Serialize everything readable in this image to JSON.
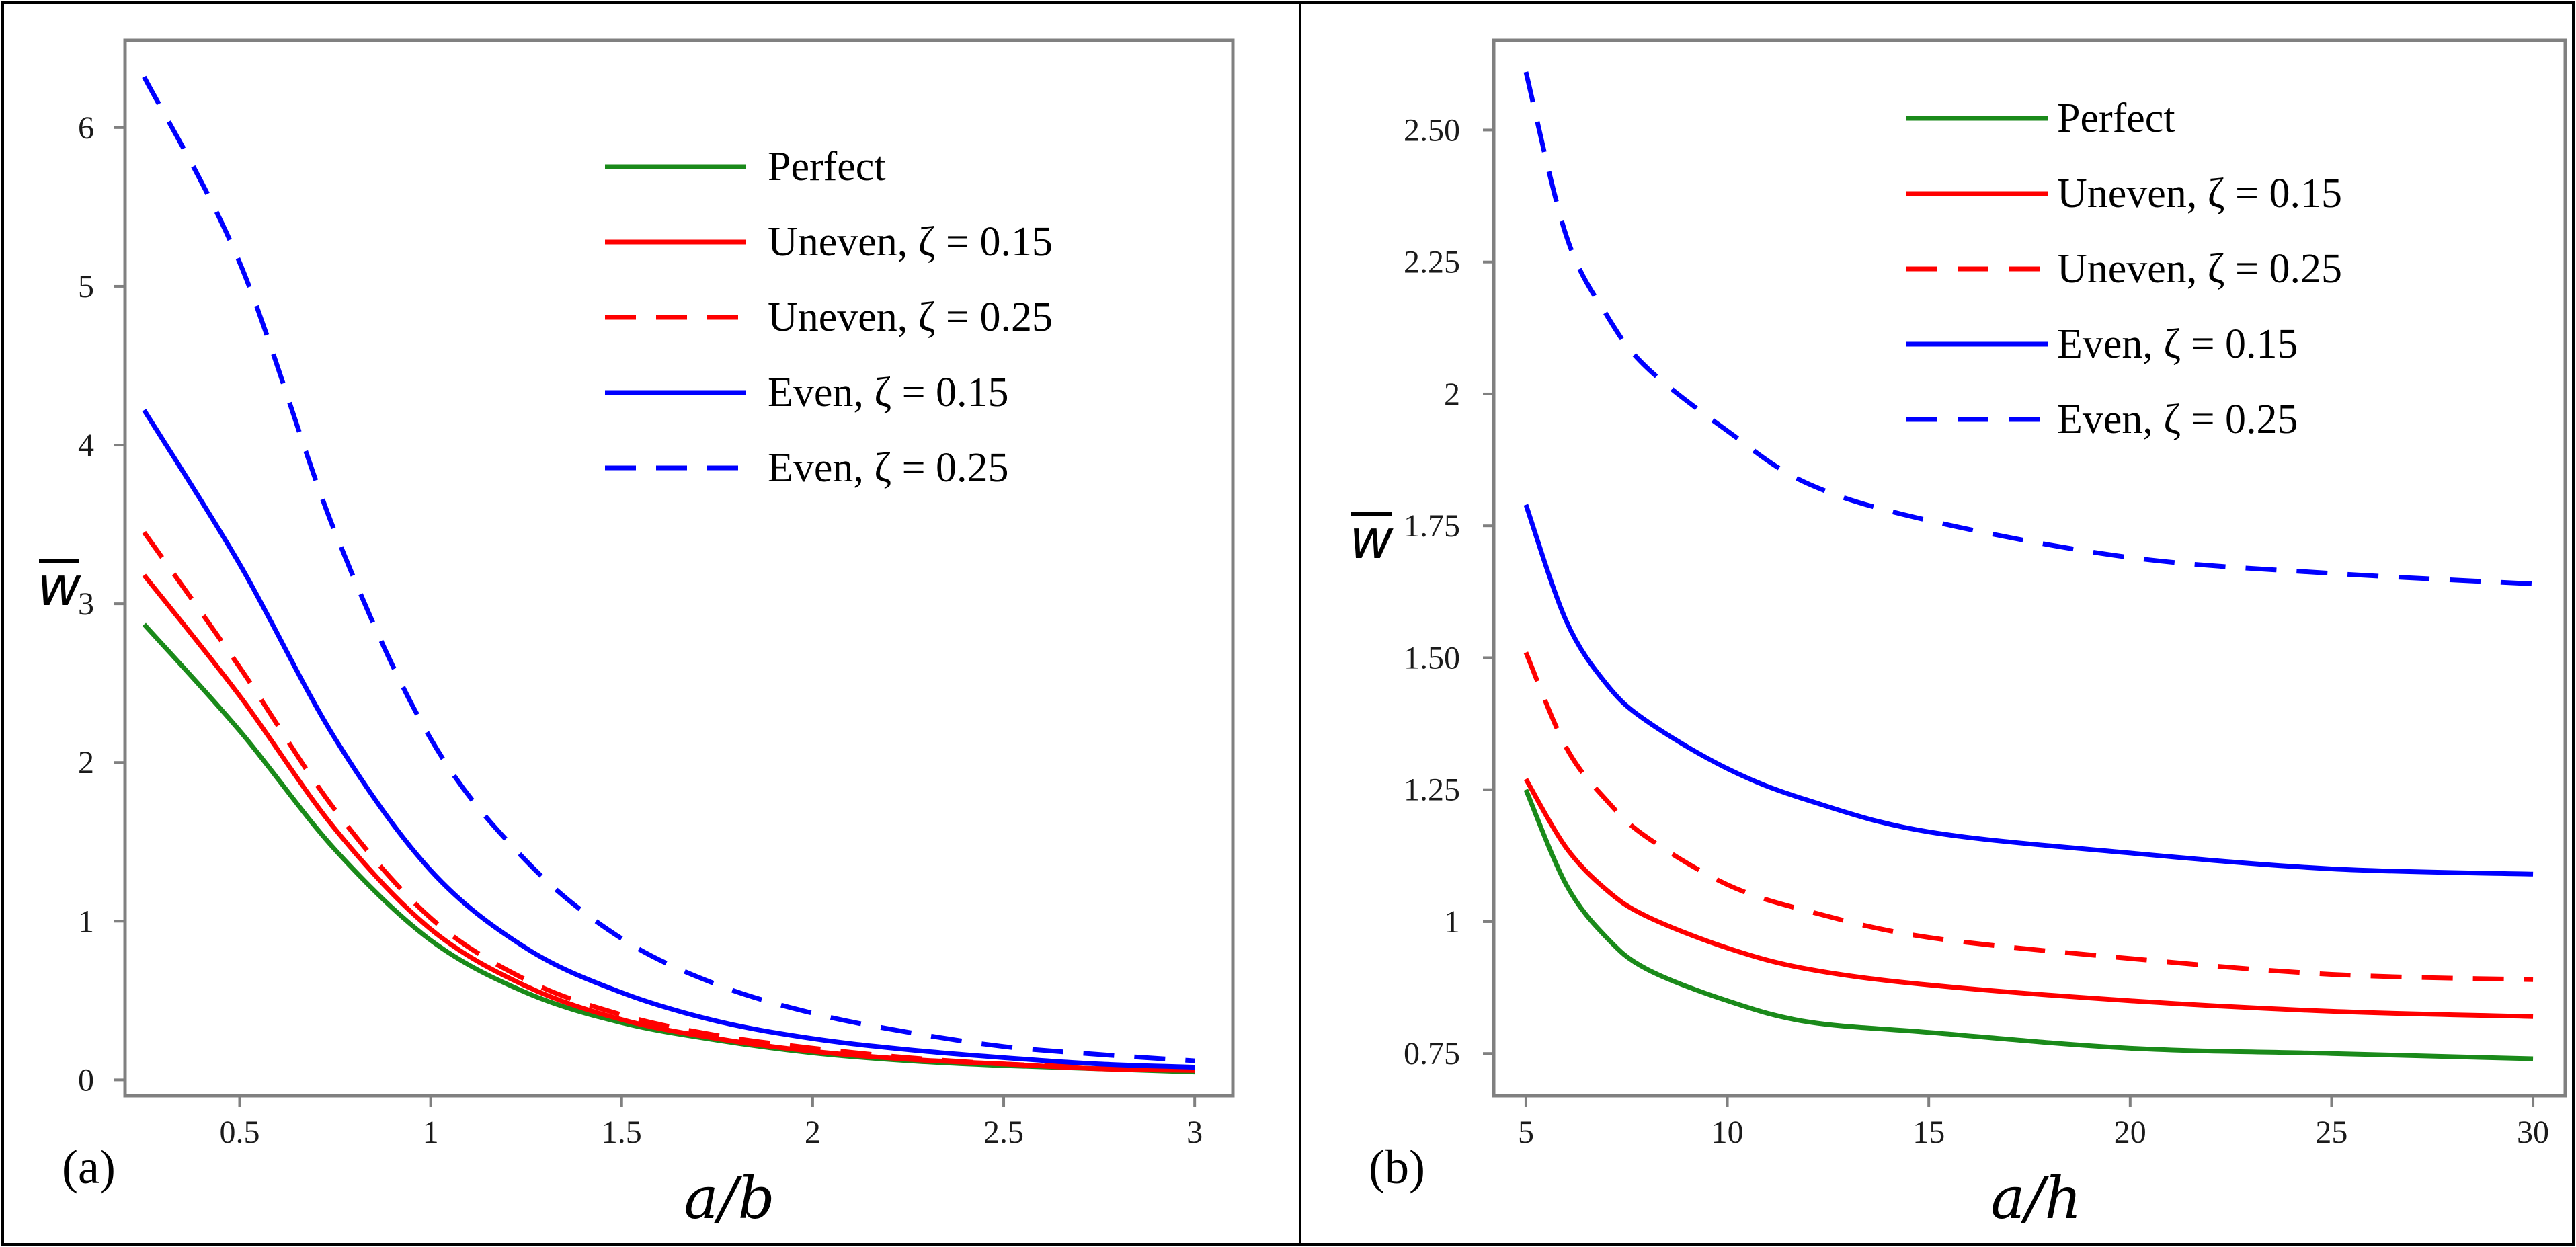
{
  "colors": {
    "perfect": "#1a8a1a",
    "uneven": "#ff0000",
    "even": "#0000ff"
  },
  "chart_data": [
    {
      "id": "a",
      "type": "line",
      "panel_label": "(a)",
      "title": "",
      "xlabel": "a/b",
      "ylabel": "w",
      "ylabel_overbar": true,
      "xlim": [
        0.2,
        3.1
      ],
      "ylim": [
        -0.1,
        6.55
      ],
      "xticks": [
        0.5,
        1,
        1.5,
        2,
        2.5,
        3
      ],
      "xtick_labels": [
        "0.5",
        "1",
        "1.5",
        "2",
        "2.5",
        "3"
      ],
      "yticks": [
        0,
        1,
        2,
        3,
        4,
        5,
        6
      ],
      "ytick_labels": [
        "0",
        "1",
        "2",
        "3",
        "4",
        "5",
        "6"
      ],
      "legend_position": "top-right",
      "x": [
        0.25,
        0.5,
        0.75,
        1.0,
        1.25,
        1.5,
        1.75,
        2.0,
        2.25,
        2.5,
        2.75,
        3.0
      ],
      "series": [
        {
          "name": "Perfect",
          "color": "perfect",
          "dash": "solid",
          "values": [
            2.87,
            2.2,
            1.45,
            0.88,
            0.55,
            0.36,
            0.25,
            0.17,
            0.12,
            0.09,
            0.07,
            0.05
          ]
        },
        {
          "name": "Uneven, ζ = 0.15",
          "color": "uneven",
          "dash": "solid",
          "values": [
            3.18,
            2.42,
            1.58,
            0.95,
            0.59,
            0.38,
            0.26,
            0.18,
            0.13,
            0.1,
            0.07,
            0.06
          ]
        },
        {
          "name": "Uneven, ζ = 0.25",
          "color": "uneven",
          "dash": "dashed",
          "values": [
            3.45,
            2.6,
            1.7,
            1.02,
            0.63,
            0.41,
            0.28,
            0.2,
            0.14,
            0.1,
            0.08,
            0.06
          ]
        },
        {
          "name": "Even, ζ = 0.15",
          "color": "even",
          "dash": "solid",
          "values": [
            4.22,
            3.25,
            2.15,
            1.32,
            0.83,
            0.55,
            0.37,
            0.26,
            0.19,
            0.14,
            0.1,
            0.08
          ]
        },
        {
          "name": "Even, ζ = 0.25",
          "color": "even",
          "dash": "dashed",
          "values": [
            6.32,
            5.15,
            3.45,
            2.15,
            1.38,
            0.89,
            0.6,
            0.42,
            0.3,
            0.21,
            0.16,
            0.12
          ]
        }
      ]
    },
    {
      "id": "b",
      "type": "line",
      "panel_label": "(b)",
      "title": "",
      "xlabel": "a/h",
      "ylabel": "w",
      "ylabel_overbar": true,
      "xlim": [
        4.2,
        30.8
      ],
      "ylim": [
        0.67,
        2.67
      ],
      "xticks": [
        5,
        10,
        15,
        20,
        25,
        30
      ],
      "xtick_labels": [
        "5",
        "10",
        "15",
        "20",
        "25",
        "30"
      ],
      "yticks": [
        0.75,
        1.0,
        1.25,
        1.5,
        1.75,
        2.0,
        2.25,
        2.5
      ],
      "ytick_labels": [
        "0.75",
        "1",
        "1.25",
        "1.50",
        "1.75",
        "2",
        "2.25",
        "2.50"
      ],
      "legend_position": "top-right",
      "x": [
        5,
        6,
        7,
        8,
        10,
        12,
        15,
        20,
        25,
        30
      ],
      "series": [
        {
          "name": "Perfect",
          "color": "perfect",
          "dash": "solid",
          "values": [
            1.25,
            1.07,
            0.97,
            0.91,
            0.85,
            0.81,
            0.79,
            0.76,
            0.75,
            0.74
          ]
        },
        {
          "name": "Uneven, ζ = 0.15",
          "color": "uneven",
          "dash": "solid",
          "values": [
            1.27,
            1.14,
            1.06,
            1.01,
            0.95,
            0.91,
            0.88,
            0.85,
            0.83,
            0.82
          ]
        },
        {
          "name": "Uneven, ζ = 0.25",
          "color": "uneven",
          "dash": "dashed",
          "values": [
            1.51,
            1.33,
            1.23,
            1.16,
            1.07,
            1.02,
            0.97,
            0.93,
            0.9,
            0.89
          ]
        },
        {
          "name": "Even, ζ = 0.15",
          "color": "even",
          "dash": "solid",
          "values": [
            1.79,
            1.57,
            1.45,
            1.38,
            1.29,
            1.23,
            1.17,
            1.13,
            1.1,
            1.09
          ]
        },
        {
          "name": "Even, ζ = 0.25",
          "color": "even",
          "dash": "dashed",
          "values": [
            2.61,
            2.3,
            2.15,
            2.05,
            1.93,
            1.83,
            1.76,
            1.69,
            1.66,
            1.64
          ]
        }
      ]
    }
  ]
}
